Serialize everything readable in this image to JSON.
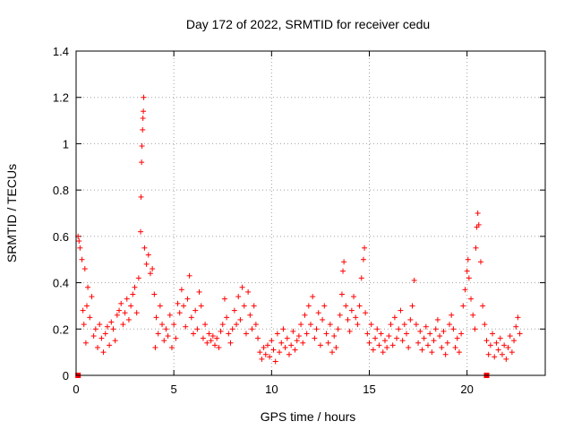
{
  "chart_data": {
    "type": "scatter",
    "title": "Day 172 of 2022, SRMTID for receiver cedu",
    "xlabel": "GPS time / hours",
    "ylabel": "SRMTID / TECUs",
    "xlim": [
      0,
      24
    ],
    "ylim": [
      0,
      1.4
    ],
    "x_ticks": [
      0,
      5,
      10,
      15,
      20
    ],
    "x_tick_labels": [
      "0",
      "5",
      "10",
      "15",
      "20"
    ],
    "y_ticks": [
      0,
      0.2,
      0.4,
      0.6,
      0.8,
      1.0,
      1.2,
      1.4
    ],
    "y_tick_labels": [
      "0",
      "0.2",
      "0.4",
      "0.6",
      "0.8",
      "1",
      "1.2",
      "1.4"
    ],
    "grid": true,
    "marker": "+",
    "marker_color": "#ff0000",
    "series": [
      {
        "name": "SRMTID",
        "points": [
          [
            0.1,
            0.6
          ],
          [
            0.15,
            0.58
          ],
          [
            0.2,
            0.55
          ],
          [
            0.3,
            0.5
          ],
          [
            0.35,
            0.28
          ],
          [
            0.4,
            0.22
          ],
          [
            0.45,
            0.46
          ],
          [
            0.5,
            0.14
          ],
          [
            0.55,
            0.3
          ],
          [
            0.6,
            0.38
          ],
          [
            0.7,
            0.25
          ],
          [
            0.8,
            0.34
          ],
          [
            0.9,
            0.17
          ],
          [
            1.0,
            0.2
          ],
          [
            1.1,
            0.12
          ],
          [
            1.2,
            0.22
          ],
          [
            1.3,
            0.16
          ],
          [
            1.4,
            0.1
          ],
          [
            1.5,
            0.18
          ],
          [
            1.6,
            0.21
          ],
          [
            1.7,
            0.13
          ],
          [
            1.8,
            0.23
          ],
          [
            1.9,
            0.2
          ],
          [
            2.0,
            0.15
          ],
          [
            2.1,
            0.26
          ],
          [
            2.2,
            0.28
          ],
          [
            2.3,
            0.31
          ],
          [
            2.4,
            0.22
          ],
          [
            2.5,
            0.27
          ],
          [
            2.6,
            0.33
          ],
          [
            2.7,
            0.24
          ],
          [
            2.8,
            0.3
          ],
          [
            2.9,
            0.35
          ],
          [
            3.0,
            0.38
          ],
          [
            3.1,
            0.27
          ],
          [
            3.2,
            0.42
          ],
          [
            3.3,
            0.62
          ],
          [
            3.32,
            0.77
          ],
          [
            3.35,
            0.92
          ],
          [
            3.37,
            0.99
          ],
          [
            3.4,
            1.06
          ],
          [
            3.42,
            1.11
          ],
          [
            3.44,
            1.14
          ],
          [
            3.46,
            1.2
          ],
          [
            3.5,
            0.55
          ],
          [
            3.6,
            0.48
          ],
          [
            3.7,
            0.52
          ],
          [
            3.8,
            0.44
          ],
          [
            3.9,
            0.46
          ],
          [
            4.0,
            0.35
          ],
          [
            4.05,
            0.12
          ],
          [
            4.1,
            0.25
          ],
          [
            4.2,
            0.18
          ],
          [
            4.3,
            0.3
          ],
          [
            4.4,
            0.22
          ],
          [
            4.5,
            0.15
          ],
          [
            4.6,
            0.2
          ],
          [
            4.7,
            0.17
          ],
          [
            4.8,
            0.26
          ],
          [
            4.9,
            0.12
          ],
          [
            5.0,
            0.22
          ],
          [
            5.1,
            0.16
          ],
          [
            5.2,
            0.31
          ],
          [
            5.3,
            0.27
          ],
          [
            5.4,
            0.37
          ],
          [
            5.5,
            0.3
          ],
          [
            5.6,
            0.21
          ],
          [
            5.7,
            0.33
          ],
          [
            5.8,
            0.43
          ],
          [
            5.9,
            0.25
          ],
          [
            6.0,
            0.18
          ],
          [
            6.1,
            0.28
          ],
          [
            6.2,
            0.2
          ],
          [
            6.3,
            0.36
          ],
          [
            6.4,
            0.3
          ],
          [
            6.5,
            0.16
          ],
          [
            6.6,
            0.22
          ],
          [
            6.7,
            0.14
          ],
          [
            6.8,
            0.18
          ],
          [
            6.9,
            0.15
          ],
          [
            7.0,
            0.17
          ],
          [
            7.1,
            0.13
          ],
          [
            7.2,
            0.16
          ],
          [
            7.3,
            0.12
          ],
          [
            7.4,
            0.19
          ],
          [
            7.5,
            0.22
          ],
          [
            7.6,
            0.33
          ],
          [
            7.7,
            0.25
          ],
          [
            7.8,
            0.18
          ],
          [
            7.9,
            0.14
          ],
          [
            8.0,
            0.2
          ],
          [
            8.1,
            0.28
          ],
          [
            8.2,
            0.22
          ],
          [
            8.3,
            0.34
          ],
          [
            8.4,
            0.24
          ],
          [
            8.5,
            0.38
          ],
          [
            8.6,
            0.3
          ],
          [
            8.7,
            0.18
          ],
          [
            8.8,
            0.36
          ],
          [
            8.9,
            0.26
          ],
          [
            9.0,
            0.2
          ],
          [
            9.1,
            0.3
          ],
          [
            9.2,
            0.22
          ],
          [
            9.3,
            0.16
          ],
          [
            9.4,
            0.1
          ],
          [
            9.5,
            0.07
          ],
          [
            9.6,
            0.12
          ],
          [
            9.7,
            0.09
          ],
          [
            9.8,
            0.13
          ],
          [
            9.9,
            0.08
          ],
          [
            10.0,
            0.15
          ],
          [
            10.1,
            0.11
          ],
          [
            10.2,
            0.06
          ],
          [
            10.3,
            0.18
          ],
          [
            10.4,
            0.1
          ],
          [
            10.5,
            0.14
          ],
          [
            10.6,
            0.2
          ],
          [
            10.7,
            0.12
          ],
          [
            10.8,
            0.16
          ],
          [
            10.9,
            0.09
          ],
          [
            11.0,
            0.13
          ],
          [
            11.1,
            0.19
          ],
          [
            11.2,
            0.11
          ],
          [
            11.3,
            0.15
          ],
          [
            11.4,
            0.17
          ],
          [
            11.5,
            0.22
          ],
          [
            11.6,
            0.14
          ],
          [
            11.7,
            0.26
          ],
          [
            11.8,
            0.18
          ],
          [
            11.9,
            0.3
          ],
          [
            12.0,
            0.22
          ],
          [
            12.1,
            0.34
          ],
          [
            12.2,
            0.16
          ],
          [
            12.3,
            0.2
          ],
          [
            12.4,
            0.27
          ],
          [
            12.5,
            0.13
          ],
          [
            12.6,
            0.24
          ],
          [
            12.7,
            0.3
          ],
          [
            12.8,
            0.18
          ],
          [
            12.9,
            0.14
          ],
          [
            13.0,
            0.22
          ],
          [
            13.1,
            0.1
          ],
          [
            13.2,
            0.17
          ],
          [
            13.3,
            0.12
          ],
          [
            13.4,
            0.2
          ],
          [
            13.5,
            0.26
          ],
          [
            13.6,
            0.35
          ],
          [
            13.65,
            0.45
          ],
          [
            13.7,
            0.49
          ],
          [
            13.8,
            0.3
          ],
          [
            13.9,
            0.24
          ],
          [
            14.0,
            0.19
          ],
          [
            14.1,
            0.28
          ],
          [
            14.2,
            0.34
          ],
          [
            14.3,
            0.25
          ],
          [
            14.4,
            0.22
          ],
          [
            14.5,
            0.3
          ],
          [
            14.6,
            0.42
          ],
          [
            14.7,
            0.5
          ],
          [
            14.75,
            0.55
          ],
          [
            14.8,
            0.27
          ],
          [
            14.9,
            0.18
          ],
          [
            15.0,
            0.14
          ],
          [
            15.1,
            0.22
          ],
          [
            15.2,
            0.11
          ],
          [
            15.3,
            0.16
          ],
          [
            15.4,
            0.2
          ],
          [
            15.5,
            0.13
          ],
          [
            15.6,
            0.18
          ],
          [
            15.7,
            0.1
          ],
          [
            15.8,
            0.15
          ],
          [
            15.9,
            0.12
          ],
          [
            16.0,
            0.17
          ],
          [
            16.1,
            0.22
          ],
          [
            16.2,
            0.13
          ],
          [
            16.3,
            0.25
          ],
          [
            16.4,
            0.16
          ],
          [
            16.5,
            0.2
          ],
          [
            16.6,
            0.28
          ],
          [
            16.7,
            0.15
          ],
          [
            16.8,
            0.22
          ],
          [
            16.9,
            0.18
          ],
          [
            17.0,
            0.12
          ],
          [
            17.1,
            0.24
          ],
          [
            17.2,
            0.3
          ],
          [
            17.3,
            0.41
          ],
          [
            17.4,
            0.22
          ],
          [
            17.5,
            0.14
          ],
          [
            17.6,
            0.19
          ],
          [
            17.7,
            0.11
          ],
          [
            17.8,
            0.16
          ],
          [
            17.9,
            0.21
          ],
          [
            18.0,
            0.13
          ],
          [
            18.1,
            0.18
          ],
          [
            18.2,
            0.1
          ],
          [
            18.3,
            0.15
          ],
          [
            18.4,
            0.2
          ],
          [
            18.5,
            0.24
          ],
          [
            18.6,
            0.17
          ],
          [
            18.7,
            0.12
          ],
          [
            18.8,
            0.19
          ],
          [
            18.9,
            0.09
          ],
          [
            19.0,
            0.14
          ],
          [
            19.1,
            0.22
          ],
          [
            19.2,
            0.26
          ],
          [
            19.3,
            0.2
          ],
          [
            19.4,
            0.12
          ],
          [
            19.5,
            0.16
          ],
          [
            19.6,
            0.1
          ],
          [
            19.7,
            0.18
          ],
          [
            19.8,
            0.3
          ],
          [
            19.9,
            0.37
          ],
          [
            20.0,
            0.45
          ],
          [
            20.05,
            0.5
          ],
          [
            20.1,
            0.42
          ],
          [
            20.2,
            0.33
          ],
          [
            20.3,
            0.26
          ],
          [
            20.4,
            0.2
          ],
          [
            20.45,
            0.55
          ],
          [
            20.5,
            0.64
          ],
          [
            20.55,
            0.7
          ],
          [
            20.6,
            0.65
          ],
          [
            20.7,
            0.49
          ],
          [
            20.8,
            0.3
          ],
          [
            20.9,
            0.22
          ],
          [
            21.0,
            0.15
          ],
          [
            21.1,
            0.09
          ],
          [
            21.2,
            0.13
          ],
          [
            21.3,
            0.18
          ],
          [
            21.4,
            0.08
          ],
          [
            21.5,
            0.14
          ],
          [
            21.6,
            0.11
          ],
          [
            21.7,
            0.16
          ],
          [
            21.8,
            0.09
          ],
          [
            21.9,
            0.13
          ],
          [
            22.0,
            0.07
          ],
          [
            22.1,
            0.12
          ],
          [
            22.2,
            0.17
          ],
          [
            22.3,
            0.1
          ],
          [
            22.4,
            0.15
          ],
          [
            22.5,
            0.21
          ],
          [
            22.6,
            0.25
          ],
          [
            22.7,
            0.18
          ]
        ]
      }
    ],
    "x_axis_markers": [
      0.1,
      21.0
    ]
  }
}
